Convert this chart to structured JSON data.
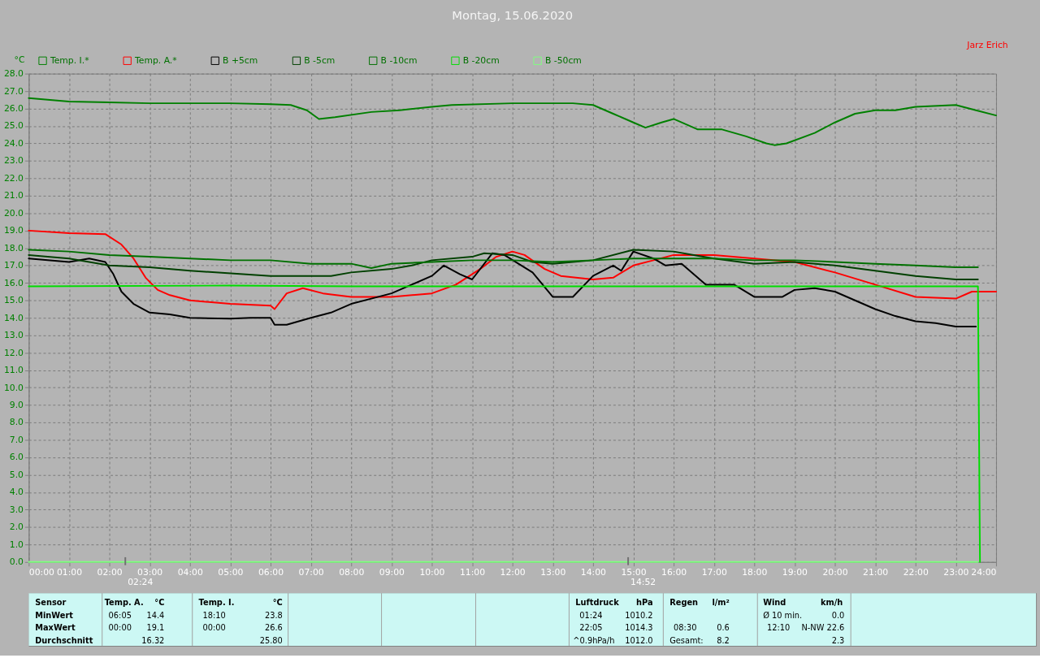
{
  "chart_data": {
    "type": "line",
    "title": "Montag, 15.06.2020",
    "subtitle": "Jarz Erich",
    "ylabel": "°C",
    "xlim": [
      0,
      24
    ],
    "xticks": [
      {
        "value": 0,
        "label": "00:00"
      },
      {
        "value": 1,
        "label": "01:00"
      },
      {
        "value": 2,
        "label": "02:00"
      },
      {
        "value": 3,
        "label": "03:00"
      },
      {
        "value": 4,
        "label": "04:00"
      },
      {
        "value": 5,
        "label": "05:00"
      },
      {
        "value": 6,
        "label": "06:00"
      },
      {
        "value": 7,
        "label": "07:00"
      },
      {
        "value": 8,
        "label": "08:00"
      },
      {
        "value": 9,
        "label": "09:00"
      },
      {
        "value": 10,
        "label": "10:00"
      },
      {
        "value": 11,
        "label": "11:00"
      },
      {
        "value": 12,
        "label": "12:00"
      },
      {
        "value": 13,
        "label": "13:00"
      },
      {
        "value": 14,
        "label": "14:00"
      },
      {
        "value": 15,
        "label": "15:00"
      },
      {
        "value": 16,
        "label": "16:00"
      },
      {
        "value": 17,
        "label": "17:00"
      },
      {
        "value": 18,
        "label": "18:00"
      },
      {
        "value": 19,
        "label": "19:00"
      },
      {
        "value": 20,
        "label": "20:00"
      },
      {
        "value": 21,
        "label": "21:00"
      },
      {
        "value": 22,
        "label": "22:00"
      },
      {
        "value": 23,
        "label": "23:00"
      },
      {
        "value": 24,
        "label": "24:00"
      }
    ],
    "ylim": [
      0,
      28
    ],
    "yticks": [
      {
        "value": 0,
        "label": "0.0"
      },
      {
        "value": 1,
        "label": "1.0"
      },
      {
        "value": 2,
        "label": "2.0"
      },
      {
        "value": 3,
        "label": "3.0"
      },
      {
        "value": 4,
        "label": "4.0"
      },
      {
        "value": 5,
        "label": "5.0"
      },
      {
        "value": 6,
        "label": "6.0"
      },
      {
        "value": 7,
        "label": "7.0"
      },
      {
        "value": 8,
        "label": "8.0"
      },
      {
        "value": 9,
        "label": "9.0"
      },
      {
        "value": 10,
        "label": "10.0"
      },
      {
        "value": 11,
        "label": "11.0"
      },
      {
        "value": 12,
        "label": "12.0"
      },
      {
        "value": 13,
        "label": "13.0"
      },
      {
        "value": 14,
        "label": "14.0"
      },
      {
        "value": 15,
        "label": "15.0"
      },
      {
        "value": 16,
        "label": "16.0"
      },
      {
        "value": 17,
        "label": "17.0"
      },
      {
        "value": 18,
        "label": "18.0"
      },
      {
        "value": 19,
        "label": "19.0"
      },
      {
        "value": 20,
        "label": "20.0"
      },
      {
        "value": 21,
        "label": "21.0"
      },
      {
        "value": 22,
        "label": "22.0"
      },
      {
        "value": 23,
        "label": "23.0"
      },
      {
        "value": 24,
        "label": "24.0"
      },
      {
        "value": 25,
        "label": "25.0"
      },
      {
        "value": 26,
        "label": "26.0"
      },
      {
        "value": 27,
        "label": "27.0"
      },
      {
        "value": 28,
        "label": "28.0"
      }
    ],
    "grid": true,
    "legend": "top left",
    "marker": "none",
    "line_style": "solid",
    "series": [
      {
        "name": "Temp. I.*",
        "color": "#008000",
        "x": [
          0,
          1,
          2,
          3,
          4,
          5,
          6,
          6.5,
          6.9,
          7.2,
          7.6,
          8.5,
          9.2,
          10,
          10.5,
          12,
          13,
          13.5,
          14,
          14.5,
          15,
          15.3,
          15.7,
          16,
          16.3,
          16.6,
          17.2,
          17.8,
          18.3,
          18.5,
          18.8,
          19.5,
          20,
          20.5,
          21,
          21.5,
          22,
          23,
          23.5,
          24
        ],
        "values": [
          26.6,
          26.4,
          26.35,
          26.3,
          26.3,
          26.3,
          26.25,
          26.2,
          25.9,
          25.4,
          25.5,
          25.8,
          25.9,
          26.1,
          26.2,
          26.3,
          26.3,
          26.3,
          26.2,
          25.7,
          25.2,
          24.9,
          25.2,
          25.4,
          25.1,
          24.8,
          24.8,
          24.4,
          24.0,
          23.9,
          24.0,
          24.6,
          25.2,
          25.7,
          25.9,
          25.9,
          26.1,
          26.2,
          25.9,
          25.6
        ]
      },
      {
        "name": "Temp. A.*",
        "color": "#ff0000",
        "x": [
          0,
          1,
          1.9,
          2.3,
          2.6,
          2.9,
          3.2,
          3.5,
          4,
          5,
          6,
          6.1,
          6.4,
          6.8,
          7.3,
          8,
          9,
          10,
          10.6,
          11.2,
          11.6,
          12,
          12.3,
          12.8,
          13.2,
          14,
          14.5,
          15,
          15.5,
          16,
          17,
          18,
          19,
          20,
          21,
          22,
          23,
          23.4,
          24
        ],
        "values": [
          19.0,
          18.85,
          18.8,
          18.2,
          17.4,
          16.3,
          15.6,
          15.3,
          15.0,
          14.8,
          14.7,
          14.5,
          15.4,
          15.7,
          15.4,
          15.2,
          15.2,
          15.4,
          15.9,
          16.8,
          17.5,
          17.8,
          17.6,
          16.8,
          16.4,
          16.2,
          16.3,
          17.0,
          17.3,
          17.6,
          17.6,
          17.4,
          17.2,
          16.6,
          15.9,
          15.2,
          15.1,
          15.5,
          15.5
        ]
      },
      {
        "name": "B +5cm",
        "color": "#000000",
        "x": [
          0,
          1,
          1.5,
          1.9,
          2.1,
          2.3,
          2.6,
          3,
          3.5,
          4,
          5,
          5.5,
          6,
          6.1,
          6.4,
          7,
          7.5,
          8,
          8.5,
          9,
          9.5,
          10,
          10.3,
          10.7,
          11,
          11.5,
          11.8,
          12.5,
          13,
          13.5,
          14,
          14.5,
          14.7,
          15,
          15.5,
          15.8,
          16.2,
          16.8,
          17.5,
          18,
          18.7,
          19,
          19.5,
          20,
          20.5,
          21,
          21.5,
          22,
          22.5,
          23,
          23.5
        ],
        "values": [
          17.4,
          17.2,
          17.4,
          17.2,
          16.5,
          15.5,
          14.8,
          14.3,
          14.2,
          14.0,
          13.95,
          14.0,
          14.0,
          13.6,
          13.6,
          14.0,
          14.3,
          14.8,
          15.1,
          15.4,
          15.9,
          16.4,
          17.0,
          16.5,
          16.2,
          17.7,
          17.6,
          16.6,
          15.2,
          15.2,
          16.4,
          17.0,
          16.7,
          17.8,
          17.4,
          17.0,
          17.1,
          15.9,
          15.9,
          15.2,
          15.2,
          15.6,
          15.7,
          15.5,
          15.0,
          14.5,
          14.1,
          13.8,
          13.7,
          13.5,
          13.5
        ]
      },
      {
        "name": "B -5cm",
        "color": "#004000",
        "x": [
          0,
          1,
          2,
          3,
          4,
          6,
          7.5,
          8,
          9,
          9.5,
          10,
          11,
          11.3,
          12,
          12.5,
          13,
          14,
          15,
          16,
          16.5,
          17,
          18,
          19,
          20,
          21,
          22,
          23,
          23.55
        ],
        "values": [
          17.6,
          17.4,
          17.0,
          16.9,
          16.7,
          16.4,
          16.4,
          16.6,
          16.8,
          17.0,
          17.3,
          17.5,
          17.7,
          17.6,
          17.2,
          17.1,
          17.3,
          17.9,
          17.8,
          17.6,
          17.4,
          17.1,
          17.2,
          17.0,
          16.7,
          16.4,
          16.2,
          16.2
        ]
      },
      {
        "name": "B -10cm",
        "color": "#007000",
        "x": [
          0,
          1,
          2,
          3,
          4,
          5,
          6,
          7,
          8,
          8.5,
          9,
          10,
          11,
          12,
          13,
          14,
          15,
          16,
          17,
          18,
          19,
          20,
          21,
          22,
          23,
          23.55
        ],
        "values": [
          17.9,
          17.8,
          17.6,
          17.5,
          17.4,
          17.3,
          17.3,
          17.1,
          17.1,
          16.85,
          17.1,
          17.2,
          17.3,
          17.3,
          17.2,
          17.3,
          17.4,
          17.4,
          17.4,
          17.3,
          17.3,
          17.2,
          17.1,
          17.0,
          16.9,
          16.9
        ]
      },
      {
        "name": "B -20cm",
        "color": "#00dd00",
        "x": [
          0,
          5,
          8,
          12,
          16,
          20,
          23.55,
          23.6
        ],
        "values": [
          15.8,
          15.85,
          15.8,
          15.8,
          15.8,
          15.8,
          15.8,
          0
        ]
      },
      {
        "name": "B -50cm",
        "color": "#80ff80",
        "x": [
          0,
          23.55
        ],
        "values": [
          0,
          0
        ]
      }
    ],
    "annotations": [
      "Sensor",
      "Temp. A.",
      "°C",
      "Temp. I.",
      "°C",
      "Luftdruck",
      "hPa",
      "Regen",
      "l/m²",
      "Wind",
      "km/h",
      "MinWert",
      "06:05",
      "14.4",
      "18:10",
      "23.8",
      "01:24",
      "1010.2",
      "Ø 10 min.",
      "0.0",
      "MaxWert",
      "00:00",
      "19.1",
      "00:00",
      "26.6",
      "22:05",
      "1014.3",
      "08:30",
      "0.6",
      "12:10",
      "N-NW 22.6",
      "Durchschnitt",
      "16.32",
      "25.80",
      "^0.9hPa/h",
      "1012.0",
      "Gesamt:",
      "8.2",
      "2.3",
      "02:24",
      "14:52"
    ]
  }
}
